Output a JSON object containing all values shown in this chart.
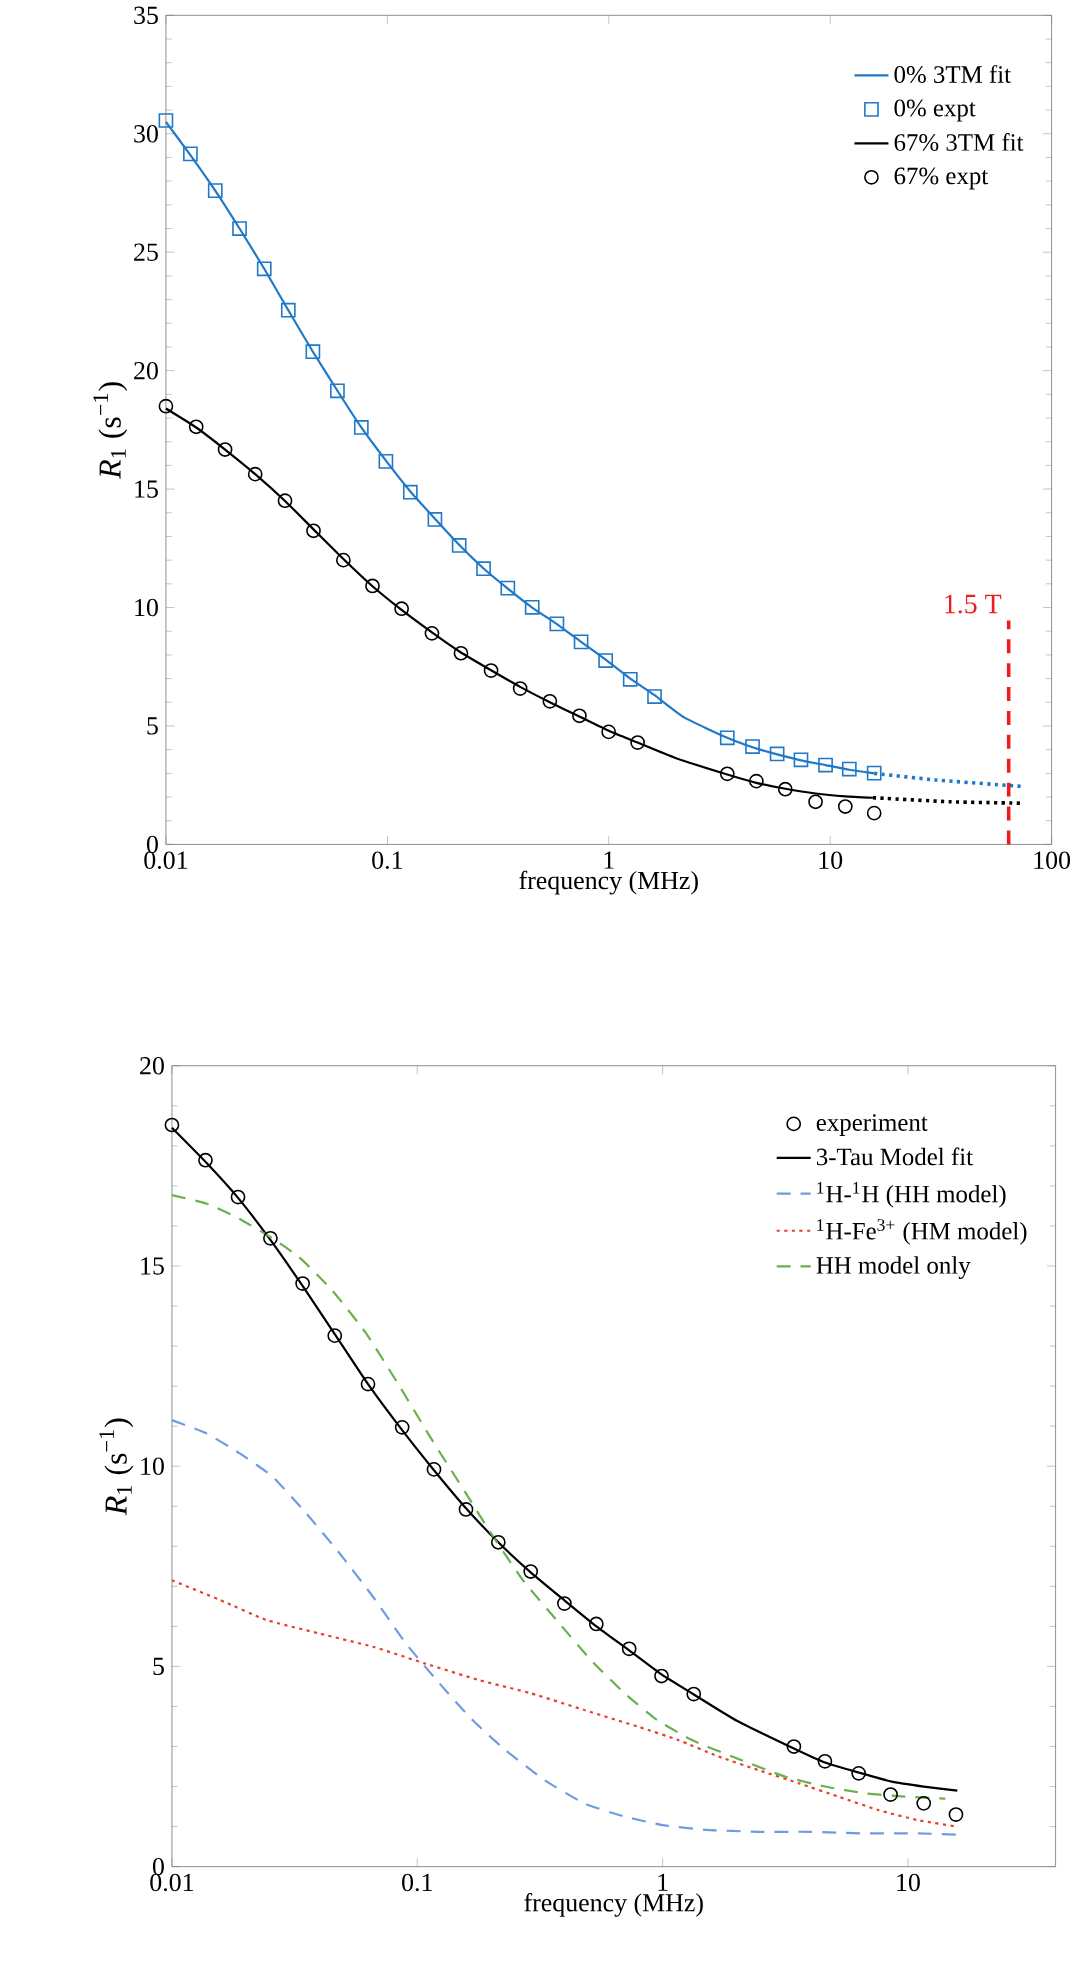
{
  "chart_data": [
    {
      "type": "line",
      "xlabel": "frequency (MHz)",
      "ylabel": "*R*$_{1}$ (s$^{−1}$)",
      "log": "x",
      "xlim": [
        0.01,
        100
      ],
      "xticks": [
        0.01,
        0.1,
        1,
        10,
        100
      ],
      "ylim": [
        0,
        35
      ],
      "yticks": [
        0,
        5,
        10,
        15,
        20,
        25,
        30,
        35
      ],
      "legend": "top right",
      "ref_lines": [
        {
          "axis": "x",
          "value": 64,
          "label": "1.5 T",
          "color": "#ee1c1c",
          "line_style": "dashed"
        }
      ],
      "series": [
        {
          "name": "0% 3TM fit",
          "type": "line",
          "color": "#1f78c8",
          "line_style": "solid",
          "marker": "none",
          "x": [
            0.01,
            0.0129,
            0.0167,
            0.0215,
            0.0278,
            0.0357,
            0.0461,
            0.0595,
            0.0763,
            0.0985,
            0.127,
            0.164,
            0.211,
            0.272,
            0.35,
            0.451,
            0.583,
            0.75,
            0.968,
            1.25,
            1.61,
            2.2,
            3.43,
            4.46,
            5.76,
            7.38,
            9.53,
            12.2,
            15.8
          ],
          "values": [
            30.5,
            29.1,
            27.6,
            26.0,
            24.3,
            22.55,
            20.8,
            19.15,
            17.6,
            16.2,
            14.9,
            13.75,
            12.65,
            11.65,
            10.8,
            10.0,
            9.3,
            8.55,
            7.8,
            7.0,
            6.3,
            5.35,
            4.5,
            4.1,
            3.8,
            3.55,
            3.35,
            3.15,
            3.0
          ]
        },
        {
          "name": "0% expt",
          "type": "scatter",
          "color": "#1f78c8",
          "marker": "square",
          "x": [
            0.01,
            0.0129,
            0.0167,
            0.0215,
            0.0278,
            0.0357,
            0.0461,
            0.0595,
            0.0763,
            0.0985,
            0.127,
            0.164,
            0.211,
            0.272,
            0.35,
            0.451,
            0.583,
            0.75,
            0.968,
            1.25,
            1.61,
            3.43,
            4.46,
            5.76,
            7.38,
            9.53,
            12.2,
            15.8
          ],
          "values": [
            30.56,
            29.15,
            27.6,
            26.0,
            24.3,
            22.55,
            20.8,
            19.15,
            17.6,
            16.17,
            14.87,
            13.72,
            12.62,
            11.64,
            10.82,
            10.01,
            9.31,
            8.55,
            7.76,
            6.97,
            6.24,
            4.5,
            4.13,
            3.82,
            3.57,
            3.35,
            3.18,
            3.01
          ]
        },
        {
          "name": "67% 3TM fit",
          "type": "line",
          "color": "#000000",
          "line_style": "solid",
          "marker": "none",
          "x": [
            0.01,
            0.0137,
            0.0185,
            0.0253,
            0.0345,
            0.0464,
            0.0633,
            0.0857,
            0.116,
            0.159,
            0.215,
            0.294,
            0.398,
            0.542,
            0.737,
            0.999,
            1.35,
            2.0,
            3.43,
            4.64,
            6.27,
            8.59,
            11.7,
            15.6
          ],
          "values": [
            18.4,
            17.6,
            16.67,
            15.63,
            14.5,
            13.3,
            12.05,
            10.9,
            9.9,
            8.95,
            8.1,
            7.35,
            6.65,
            6.0,
            5.4,
            4.8,
            4.3,
            3.65,
            2.95,
            2.6,
            2.35,
            2.15,
            2.03,
            1.97
          ]
        },
        {
          "name": "67% expt",
          "type": "scatter",
          "color": "#000000",
          "marker": "circle",
          "x": [
            0.01,
            0.0137,
            0.0185,
            0.0253,
            0.0345,
            0.0464,
            0.0633,
            0.0857,
            0.116,
            0.159,
            0.215,
            0.294,
            0.398,
            0.542,
            0.737,
            0.999,
            1.35,
            3.43,
            4.64,
            6.27,
            8.59,
            11.7,
            15.8
          ],
          "values": [
            18.5,
            17.63,
            16.67,
            15.63,
            14.51,
            13.24,
            12.0,
            10.91,
            9.95,
            8.91,
            8.07,
            7.34,
            6.58,
            6.04,
            5.43,
            4.75,
            4.3,
            2.98,
            2.67,
            2.33,
            1.8,
            1.6,
            1.32
          ]
        },
        {
          "type": "line",
          "color": "#1f78c8",
          "line_style": "dotted",
          "marker": "none",
          "x": [
            15.8,
            30,
            73
          ],
          "values": [
            3.0,
            2.72,
            2.45
          ]
        },
        {
          "type": "line",
          "color": "#000000",
          "line_style": "dotted",
          "marker": "none",
          "x": [
            15.6,
            35,
            73
          ],
          "values": [
            1.97,
            1.8,
            1.74
          ]
        }
      ]
    },
    {
      "type": "line",
      "xlabel": "frequency (MHz)",
      "ylabel": "*R*$_{1}$ (s$^{−1}$)",
      "log": "x",
      "xlim": [
        0.01,
        40
      ],
      "xticks": [
        0.01,
        0.1,
        1,
        10
      ],
      "ylim": [
        0,
        20
      ],
      "yticks": [
        0,
        5,
        10,
        15,
        20
      ],
      "legend": "top right",
      "series": [
        {
          "name": "experiment",
          "type": "scatter",
          "color": "#000000",
          "marker": "circle",
          "x": [
            0.01,
            0.0137,
            0.0186,
            0.0252,
            0.0341,
            0.0461,
            0.063,
            0.0868,
            0.117,
            0.158,
            0.214,
            0.29,
            0.398,
            0.537,
            0.731,
            0.99,
            1.34,
            3.43,
            4.59,
            6.3,
            8.5,
            11.6,
            15.7
          ],
          "values": [
            18.52,
            17.64,
            16.72,
            15.69,
            14.56,
            13.26,
            12.05,
            10.97,
            9.92,
            8.92,
            8.1,
            7.37,
            6.57,
            6.06,
            5.44,
            4.76,
            4.31,
            3.0,
            2.63,
            2.33,
            1.8,
            1.58,
            1.3
          ]
        },
        {
          "name": "3-Tau Model fit",
          "type": "line",
          "color": "#000000",
          "line_style": "solid",
          "marker": "none",
          "x": [
            0.01,
            0.0137,
            0.0186,
            0.0252,
            0.0341,
            0.0461,
            0.063,
            0.0868,
            0.117,
            0.158,
            0.214,
            0.29,
            0.398,
            0.537,
            0.731,
            0.99,
            1.34,
            2.0,
            3.43,
            4.59,
            6.3,
            8.5,
            11.6,
            15.9
          ],
          "values": [
            18.45,
            17.6,
            16.7,
            15.65,
            14.5,
            13.3,
            12.05,
            10.9,
            9.9,
            8.95,
            8.1,
            7.35,
            6.65,
            6.0,
            5.4,
            4.8,
            4.3,
            3.65,
            2.95,
            2.6,
            2.35,
            2.13,
            2.0,
            1.9
          ]
        },
        {
          "name": "$^{1}$H-$^{1}$H  (HH model)",
          "type": "line",
          "color": "#6f9be3",
          "line_style": "dashed",
          "marker": "none",
          "x": [
            0.01,
            0.0138,
            0.0189,
            0.0258,
            0.0353,
            0.0483,
            0.066,
            0.09,
            0.123,
            0.168,
            0.229,
            0.33,
            0.48,
            0.7,
            1.02,
            1.5,
            2.46,
            4.0,
            6.7,
            11.0,
            15.9
          ],
          "values": [
            11.15,
            10.82,
            10.32,
            9.73,
            8.82,
            7.82,
            6.74,
            5.57,
            4.58,
            3.66,
            2.91,
            2.16,
            1.58,
            1.25,
            1.03,
            0.92,
            0.87,
            0.87,
            0.83,
            0.83,
            0.8
          ]
        },
        {
          "name": "$^{1}$H-Fe$^{3+}$ (HM model)",
          "type": "line",
          "color": "#e8402a",
          "line_style": "dotted",
          "marker": "none",
          "x": [
            0.01,
            0.0157,
            0.0243,
            0.04,
            0.066,
            0.108,
            0.178,
            0.29,
            0.48,
            0.8,
            1.16,
            1.69,
            2.46,
            3.6,
            5.2,
            7.6,
            11.0,
            15.9
          ],
          "values": [
            7.15,
            6.66,
            6.16,
            5.82,
            5.49,
            5.07,
            4.66,
            4.33,
            3.91,
            3.49,
            3.16,
            2.75,
            2.41,
            2.08,
            1.75,
            1.41,
            1.16,
            1.0
          ]
        },
        {
          "name": "HH model only",
          "type": "line",
          "color": "#6ab04c",
          "line_style": "dashed",
          "marker": "none",
          "x": [
            0.01,
            0.0138,
            0.0183,
            0.0252,
            0.033,
            0.045,
            0.062,
            0.085,
            0.115,
            0.158,
            0.2,
            0.27,
            0.38,
            0.51,
            0.7,
            0.95,
            1.32,
            1.92,
            3.15,
            4.6,
            6.7,
            9.7,
            14.2
          ],
          "values": [
            16.77,
            16.56,
            16.22,
            15.72,
            15.22,
            14.39,
            13.31,
            11.98,
            10.65,
            9.32,
            8.32,
            7.15,
            6.07,
            5.16,
            4.33,
            3.66,
            3.16,
            2.75,
            2.25,
            2.0,
            1.83,
            1.75,
            1.7
          ]
        }
      ]
    }
  ]
}
